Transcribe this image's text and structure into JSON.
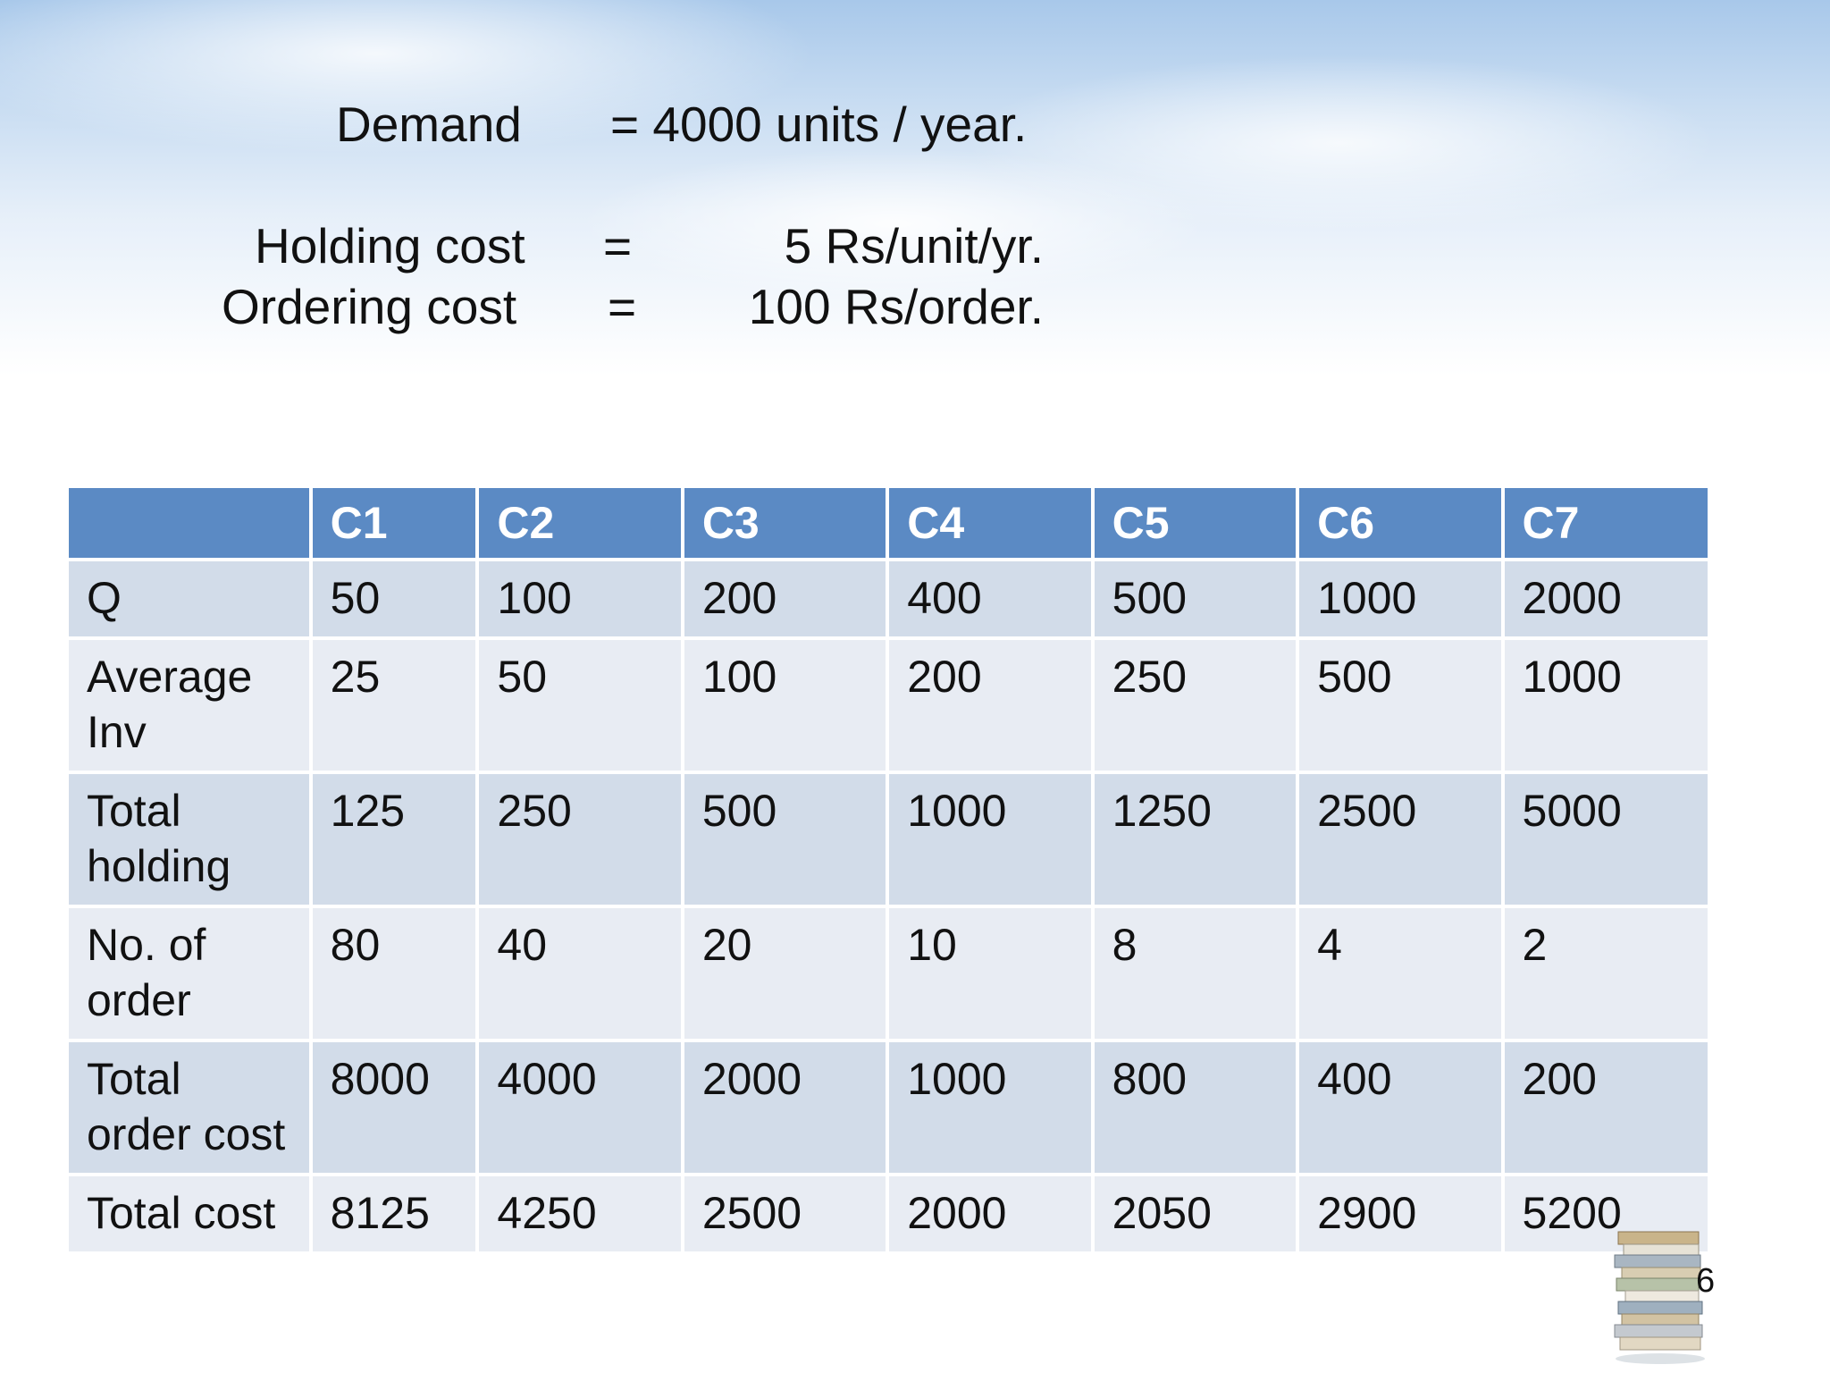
{
  "header": {
    "demand_label": "Demand",
    "demand_value": "= 4000 units / year.",
    "holding_label": "Holding cost",
    "holding_eq": "=",
    "holding_value": "5 Rs/unit/yr.",
    "ordering_label": "Ordering cost",
    "ordering_eq": "=",
    "ordering_value": "100 Rs/order."
  },
  "table": {
    "columns": [
      "",
      "C1",
      "C2",
      "C3",
      "C4",
      "C5",
      "C6",
      "C7"
    ],
    "rows": [
      {
        "label": "Q",
        "values": [
          "50",
          "100",
          "200",
          "400",
          "500",
          "1000",
          "2000"
        ]
      },
      {
        "label": "Average Inv",
        "values": [
          "25",
          "50",
          "100",
          "200",
          "250",
          "500",
          "1000"
        ]
      },
      {
        "label": "Total holding",
        "values": [
          "125",
          "250",
          "500",
          "1000",
          "1250",
          "2500",
          "5000"
        ]
      },
      {
        "label": "No. of order",
        "values": [
          "80",
          "40",
          "20",
          "10",
          "8",
          "4",
          "2"
        ]
      },
      {
        "label": "Total order cost",
        "values": [
          "8000",
          "4000",
          "2000",
          "1000",
          "800",
          "400",
          "200"
        ]
      },
      {
        "label": "Total cost",
        "values": [
          "8125",
          "4250",
          "2500",
          "2000",
          "2050",
          "2900",
          "5200"
        ]
      }
    ]
  },
  "footer": {
    "page_number": "6",
    "decoration_icon": "book-stack-icon"
  }
}
